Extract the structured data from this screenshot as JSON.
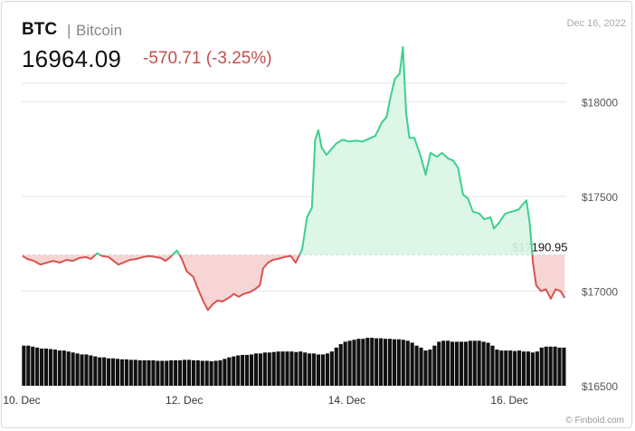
{
  "header": {
    "ticker": "BTC",
    "separator": "|",
    "name": "Bitcoin",
    "price": "16964.09",
    "change": "-570.71 (-3.25%)",
    "date": "Dec 16, 2022"
  },
  "watermark": "© Finbold.com",
  "colors": {
    "up": "#3ecf8e",
    "down": "#d9534f",
    "up_fill": "#d8f5e6",
    "down_fill": "#f6d0d0",
    "volume": "#111111",
    "grid": "#e6e6e6"
  },
  "chart_data": {
    "type": "area",
    "baseline": 17190.95,
    "baseline_label": "$17190.95",
    "ylim": [
      16500,
      18500
    ],
    "y_ticks": [
      16500,
      17000,
      17500,
      18000
    ],
    "y_tick_labels": [
      "$16500",
      "$17000",
      "$17500",
      "$18000"
    ],
    "x_tick_labels": [
      {
        "label": "10. Dec",
        "t": 0.75
      },
      {
        "label": "12. Dec",
        "t": 2.75
      },
      {
        "label": "14. Dec",
        "t": 4.75
      },
      {
        "label": "16. Dec",
        "t": 6.75
      }
    ],
    "x_range_days": [
      0.75,
      7.45
    ],
    "price_series": [
      [
        0.76,
        17186
      ],
      [
        0.82,
        17170
      ],
      [
        0.9,
        17160
      ],
      [
        0.98,
        17140
      ],
      [
        1.06,
        17150
      ],
      [
        1.14,
        17160
      ],
      [
        1.22,
        17150
      ],
      [
        1.3,
        17165
      ],
      [
        1.38,
        17160
      ],
      [
        1.46,
        17175
      ],
      [
        1.54,
        17180
      ],
      [
        1.6,
        17170
      ],
      [
        1.68,
        17200
      ],
      [
        1.74,
        17185
      ],
      [
        1.82,
        17180
      ],
      [
        1.88,
        17160
      ],
      [
        1.94,
        17140
      ],
      [
        2.0,
        17150
      ],
      [
        2.08,
        17165
      ],
      [
        2.16,
        17170
      ],
      [
        2.24,
        17180
      ],
      [
        2.32,
        17185
      ],
      [
        2.4,
        17180
      ],
      [
        2.46,
        17175
      ],
      [
        2.52,
        17160
      ],
      [
        2.58,
        17180
      ],
      [
        2.66,
        17215
      ],
      [
        2.72,
        17170
      ],
      [
        2.78,
        17105
      ],
      [
        2.86,
        17075
      ],
      [
        2.92,
        17010
      ],
      [
        2.98,
        16950
      ],
      [
        3.04,
        16900
      ],
      [
        3.1,
        16930
      ],
      [
        3.16,
        16950
      ],
      [
        3.22,
        16945
      ],
      [
        3.3,
        16965
      ],
      [
        3.36,
        16985
      ],
      [
        3.42,
        16970
      ],
      [
        3.48,
        16985
      ],
      [
        3.56,
        16995
      ],
      [
        3.62,
        17010
      ],
      [
        3.68,
        17030
      ],
      [
        3.72,
        17120
      ],
      [
        3.78,
        17150
      ],
      [
        3.84,
        17165
      ],
      [
        3.9,
        17170
      ],
      [
        3.98,
        17180
      ],
      [
        4.06,
        17186
      ],
      [
        4.12,
        17150
      ],
      [
        4.2,
        17220
      ],
      [
        4.26,
        17390
      ],
      [
        4.32,
        17440
      ],
      [
        4.36,
        17800
      ],
      [
        4.4,
        17850
      ],
      [
        4.44,
        17760
      ],
      [
        4.5,
        17720
      ],
      [
        4.56,
        17750
      ],
      [
        4.62,
        17780
      ],
      [
        4.7,
        17800
      ],
      [
        4.78,
        17790
      ],
      [
        4.86,
        17795
      ],
      [
        4.94,
        17790
      ],
      [
        5.02,
        17805
      ],
      [
        5.1,
        17820
      ],
      [
        5.18,
        17890
      ],
      [
        5.24,
        17920
      ],
      [
        5.28,
        18010
      ],
      [
        5.34,
        18120
      ],
      [
        5.4,
        18150
      ],
      [
        5.44,
        18290
      ],
      [
        5.48,
        17940
      ],
      [
        5.52,
        17810
      ],
      [
        5.58,
        17810
      ],
      [
        5.66,
        17710
      ],
      [
        5.72,
        17615
      ],
      [
        5.78,
        17730
      ],
      [
        5.86,
        17710
      ],
      [
        5.92,
        17730
      ],
      [
        6.0,
        17700
      ],
      [
        6.06,
        17690
      ],
      [
        6.12,
        17650
      ],
      [
        6.18,
        17510
      ],
      [
        6.24,
        17490
      ],
      [
        6.3,
        17420
      ],
      [
        6.38,
        17410
      ],
      [
        6.44,
        17380
      ],
      [
        6.52,
        17390
      ],
      [
        6.56,
        17330
      ],
      [
        6.62,
        17360
      ],
      [
        6.7,
        17410
      ],
      [
        6.78,
        17420
      ],
      [
        6.86,
        17430
      ],
      [
        6.92,
        17460
      ],
      [
        6.96,
        17480
      ],
      [
        7.0,
        17360
      ],
      [
        7.04,
        17150
      ],
      [
        7.08,
        17030
      ],
      [
        7.14,
        17000
      ],
      [
        7.2,
        17010
      ],
      [
        7.26,
        16960
      ],
      [
        7.32,
        17010
      ],
      [
        7.38,
        17000
      ],
      [
        7.43,
        16964
      ]
    ],
    "volume_series": [
      0.82,
      0.82,
      0.8,
      0.78,
      0.76,
      0.76,
      0.75,
      0.74,
      0.72,
      0.72,
      0.7,
      0.68,
      0.66,
      0.64,
      0.64,
      0.62,
      0.6,
      0.58,
      0.58,
      0.56,
      0.56,
      0.55,
      0.54,
      0.54,
      0.53,
      0.53,
      0.52,
      0.52,
      0.52,
      0.52,
      0.51,
      0.51,
      0.51,
      0.52,
      0.52,
      0.52,
      0.53,
      0.53,
      0.52,
      0.52,
      0.51,
      0.51,
      0.5,
      0.51,
      0.52,
      0.55,
      0.58,
      0.6,
      0.62,
      0.63,
      0.63,
      0.64,
      0.66,
      0.66,
      0.68,
      0.68,
      0.69,
      0.7,
      0.7,
      0.7,
      0.7,
      0.69,
      0.7,
      0.68,
      0.66,
      0.66,
      0.64,
      0.64,
      0.66,
      0.7,
      0.78,
      0.85,
      0.9,
      0.92,
      0.94,
      0.96,
      0.96,
      0.98,
      0.98,
      0.97,
      0.97,
      0.96,
      0.96,
      0.95,
      0.95,
      0.94,
      0.92,
      0.88,
      0.82,
      0.78,
      0.72,
      0.74,
      0.82,
      0.9,
      0.92,
      0.92,
      0.9,
      0.9,
      0.9,
      0.9,
      0.92,
      0.92,
      0.92,
      0.9,
      0.88,
      0.82,
      0.74,
      0.72,
      0.72,
      0.72,
      0.71,
      0.72,
      0.7,
      0.7,
      0.68,
      0.7,
      0.78,
      0.8,
      0.8,
      0.8,
      0.78,
      0.78
    ]
  }
}
